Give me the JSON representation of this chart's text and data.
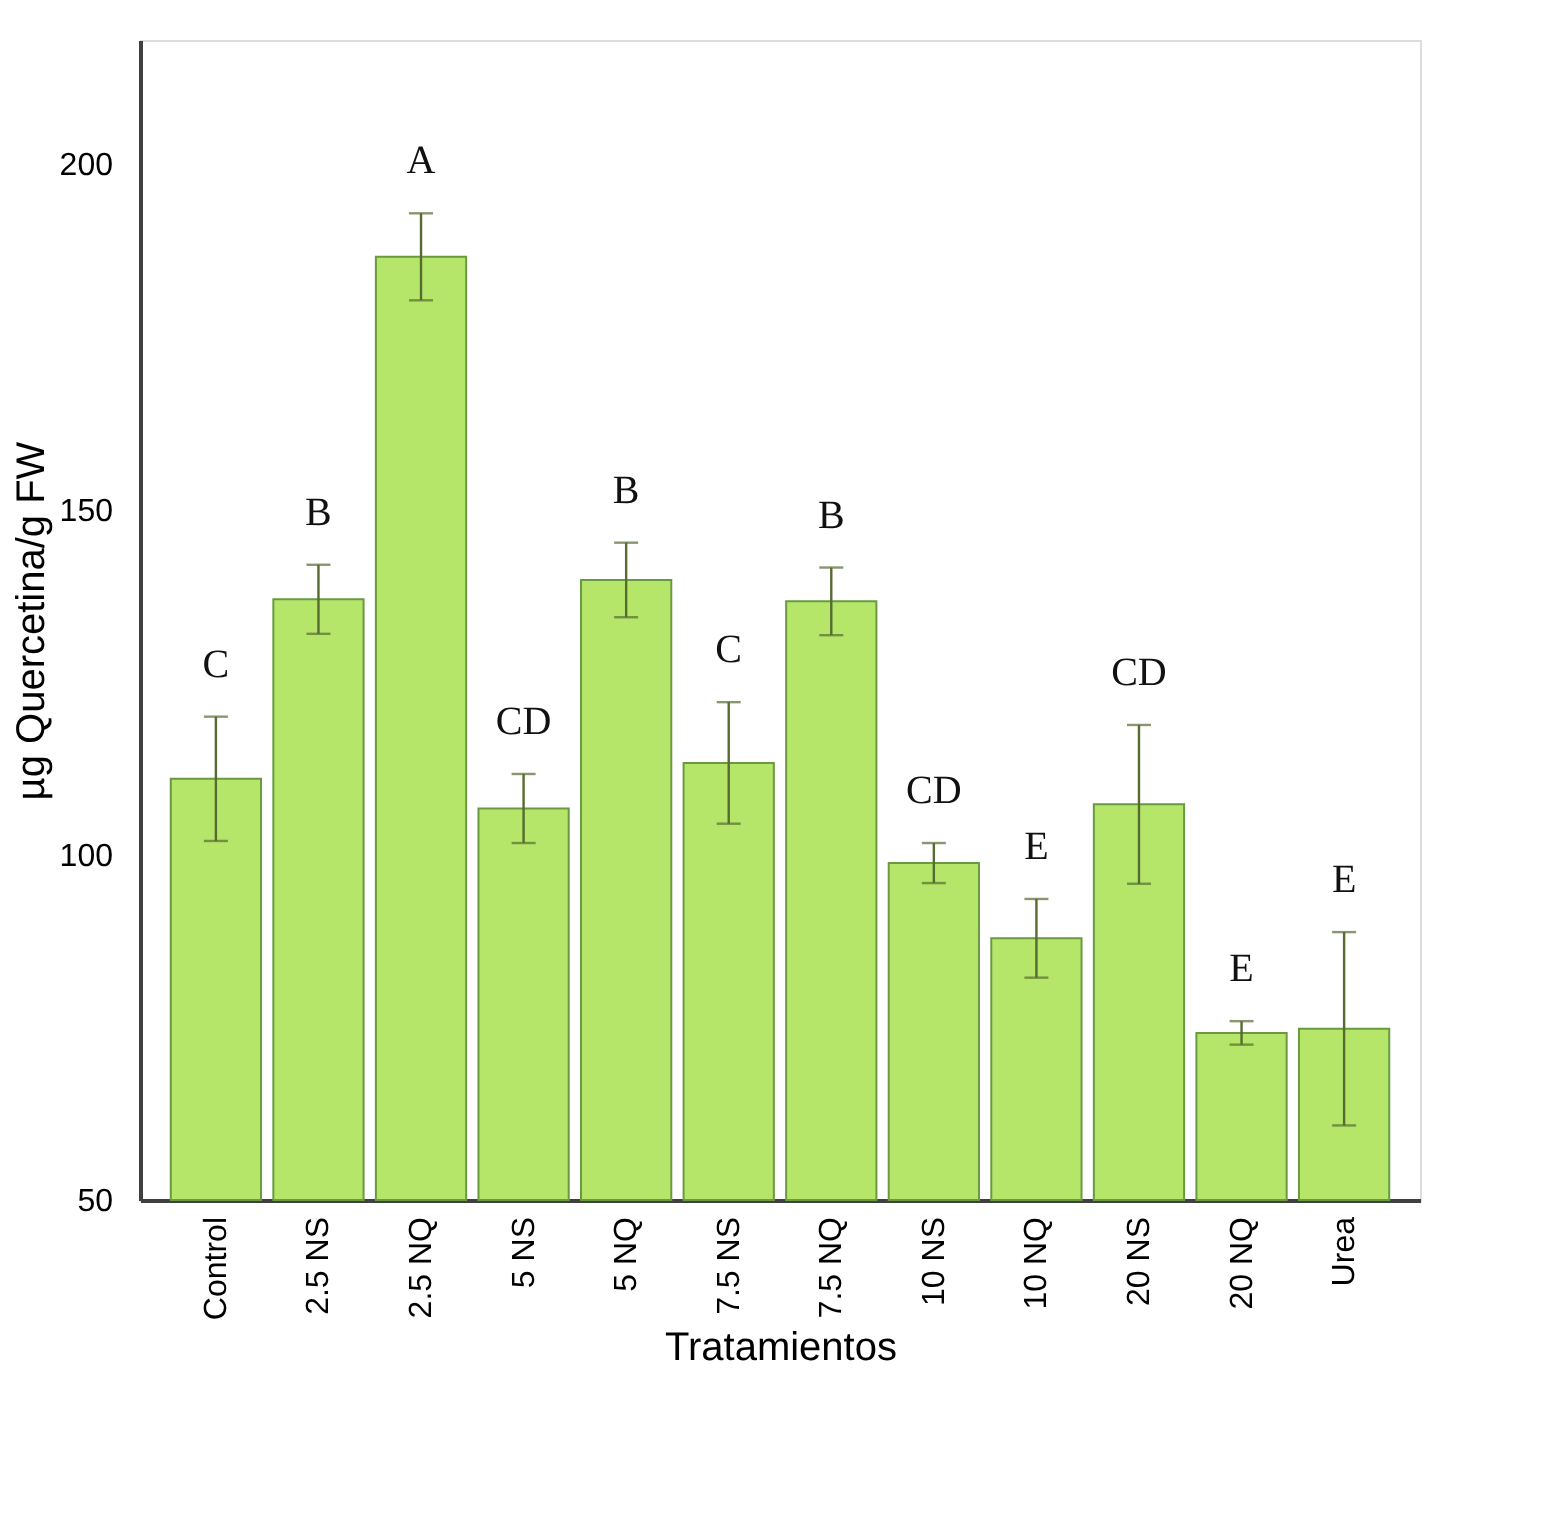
{
  "chart_data": {
    "type": "bar",
    "xlabel": "Tratamientos",
    "ylabel": "µg Quercetina/g FW",
    "categories": [
      "Control",
      "2.5 NS",
      "2.5 NQ",
      "5 NS",
      "5 NQ",
      "7.5 NS",
      "7.5 NQ",
      "10 NS",
      "10 NQ",
      "20 NS",
      "20 NQ",
      "Urea"
    ],
    "values": [
      111,
      137,
      186.6,
      106.7,
      139.8,
      113.3,
      136.7,
      98.8,
      87.9,
      107.3,
      74.2,
      74.8
    ],
    "errors": [
      9,
      5,
      6.3,
      5,
      5.4,
      8.8,
      4.9,
      2.9,
      5.7,
      11.5,
      1.7,
      14
    ],
    "color": "#b5e66a",
    "ylim": [
      50,
      218
    ],
    "yticks": [
      50,
      100,
      150,
      200
    ],
    "grid": false,
    "annotations": [
      {
        "text": "C",
        "x": "Control",
        "y": 120
      },
      {
        "text": "B",
        "x": "2.5 NS",
        "y": 142
      },
      {
        "text": "A",
        "x": "2.5 NQ",
        "y": 192.9
      },
      {
        "text": "CD",
        "x": "5 NS",
        "y": 111.7
      },
      {
        "text": "B",
        "x": "5 NQ",
        "y": 145.2
      },
      {
        "text": "C",
        "x": "7.5 NS",
        "y": 122.1
      },
      {
        "text": "B",
        "x": "7.5 NQ",
        "y": 141.6
      },
      {
        "text": "CD",
        "x": "10 NS",
        "y": 101.7
      },
      {
        "text": "E",
        "x": "10 NQ",
        "y": 93.6
      },
      {
        "text": "CD",
        "x": "20 NS",
        "y": 118.8
      },
      {
        "text": "E",
        "x": "20 NQ",
        "y": 75.9
      },
      {
        "text": "E",
        "x": "Urea",
        "y": 88.8
      }
    ]
  }
}
